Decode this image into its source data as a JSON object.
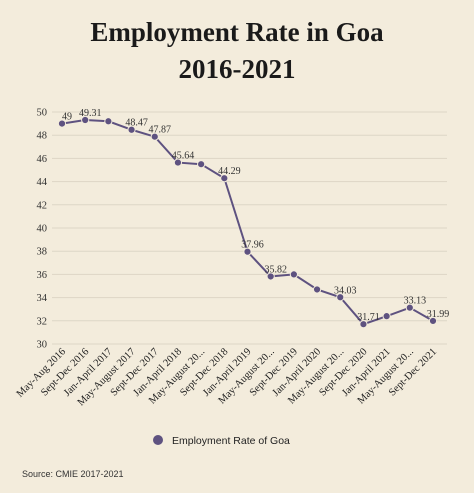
{
  "chart_data": {
    "type": "line",
    "title_lines": [
      "Employment Rate in Goa",
      "2016-2021"
    ],
    "categories": [
      "May-Aug 2016",
      "Sept-Dec 2016",
      "Jan-April 2017",
      "May-August 2017",
      "Sept-Dec 2017",
      "Jan-April 2018",
      "May-August 20...",
      "Sept-Dec 2018",
      "Jan-April 2019",
      "May-August 20...",
      "Sept-Dec 2019",
      "Jan-April 2020",
      "May-August 20...",
      "Sept-Dec 2020",
      "Jan-April 2021",
      "May-August 20...",
      "Sept-Dec 2021"
    ],
    "series": [
      {
        "name": "Employment Rate of Goa",
        "values": [
          49,
          49.31,
          49.2,
          48.47,
          47.87,
          45.64,
          45.5,
          44.29,
          37.96,
          35.82,
          36.0,
          34.7,
          34.03,
          31.71,
          32.4,
          33.13,
          31.99
        ],
        "labels": [
          "49",
          "49.31",
          "",
          "48.47",
          "47.87",
          "45.64",
          "",
          "44.29",
          "37.96",
          "35.82",
          "",
          "",
          "34.03",
          "31.71",
          "",
          "33.13",
          "31.99"
        ]
      }
    ],
    "ylim": [
      30,
      50
    ],
    "yticks": [
      30,
      32,
      34,
      36,
      38,
      40,
      42,
      44,
      46,
      48,
      50
    ],
    "grid": true,
    "legend_position": "bottom",
    "colors": {
      "line": "#5e5280",
      "marker": "#5e5280",
      "grid": "#ddd6c6",
      "background": "#f3ecdc"
    },
    "source": "Source: CMIE 2017-2021"
  }
}
